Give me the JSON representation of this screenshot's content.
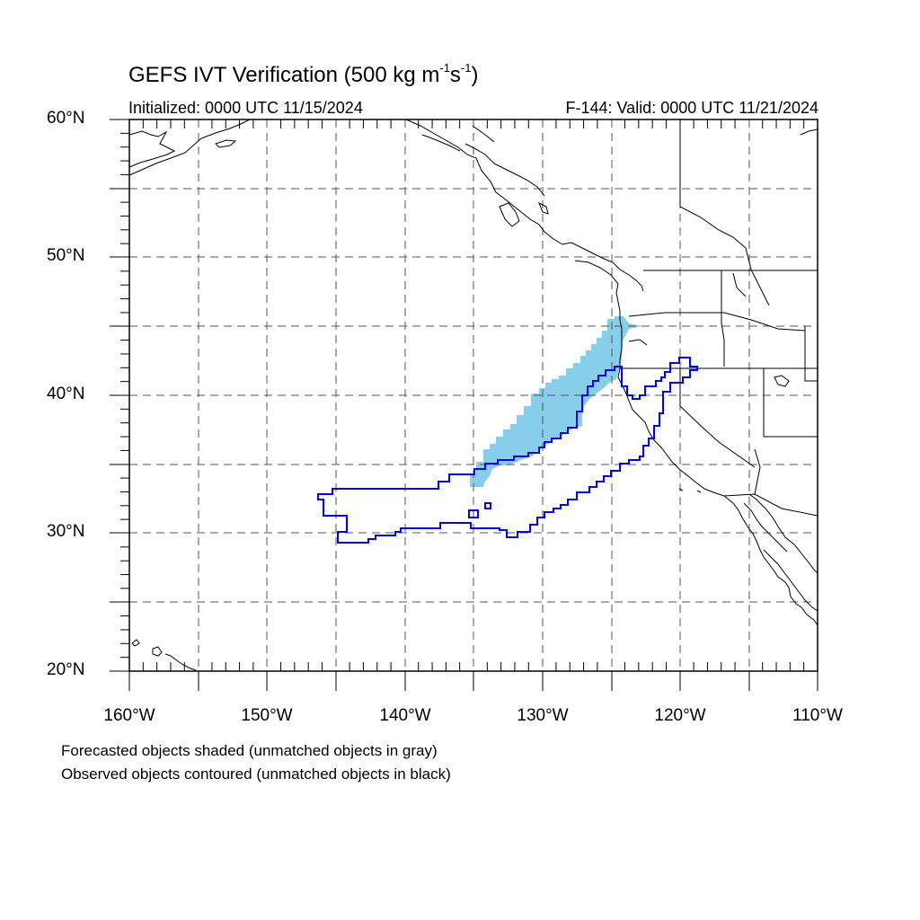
{
  "header": {
    "title_main": "GEFS IVT Verification (500 kg m",
    "title_exp1": "-1",
    "title_mid": "s",
    "title_exp2": "-1",
    "title_end": ")",
    "initialized": "Initialized: 0000 UTC 11/15/2024",
    "valid": "F-144: Valid: 0000 UTC 11/21/2024"
  },
  "axes": {
    "lat_labels": [
      "60°N",
      "50°N",
      "40°N",
      "30°N",
      "20°N"
    ],
    "lon_labels": [
      "160°W",
      "150°W",
      "140°W",
      "130°W",
      "120°W",
      "110°W"
    ],
    "lat_range": [
      20,
      60
    ],
    "lon_range": [
      -160,
      -110
    ],
    "grid": "dashed, every 5 degrees"
  },
  "legend": {
    "line1": "Forecasted objects shaded (unmatched objects in gray)",
    "line2": "Observed objects contoured (unmatched objects in black)"
  },
  "colors": {
    "forecast_fill": "#87ceeb",
    "observed_contour": "#0000ff",
    "coast": "#000000",
    "grid": "#555555"
  }
}
